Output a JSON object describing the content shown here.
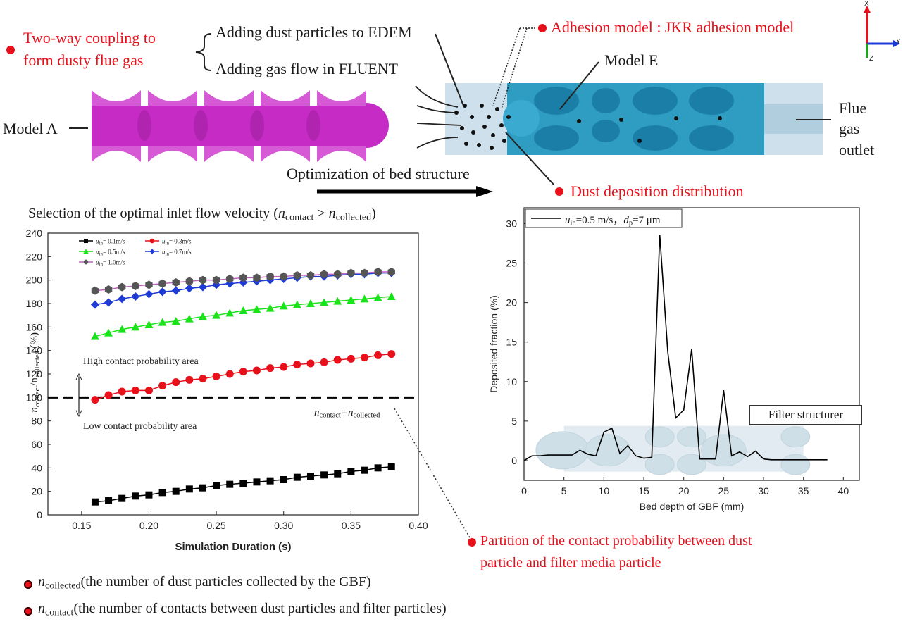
{
  "top": {
    "coupling_line1": "Two-way coupling to",
    "coupling_line2": "form dusty flue gas",
    "edem_text": "Adding dust particles to EDEM",
    "fluent_text": "Adding gas flow in FLUENT",
    "adhesion_text": "Adhesion model : JKR adhesion model",
    "model_e": "Model E",
    "model_a": "Model A",
    "flue_line1": "Flue",
    "flue_line2": "gas",
    "flue_line3": "outlet",
    "optimization": "Optimization of bed structure",
    "dust_deposition": "Dust deposition distribution",
    "axis_x": "X",
    "axis_y": "Y",
    "axis_z": "Z"
  },
  "left_title": {
    "prefix": "Selection of the optimal inlet flow velocity (",
    "n": "n",
    "contact": "contact",
    "gt": " > ",
    "collected": "collected",
    "suffix": ")"
  },
  "left_chart_labels": {
    "high_area": "High contact probability area",
    "low_area": "Low contact probability area",
    "eq_n1": "n",
    "eq_sub1": "contact",
    "eq_mid": "=n",
    "eq_sub2": "collected",
    "ylabel_n1": "n",
    "ylabel_sub1": "contact",
    "ylabel_slash": "/n",
    "ylabel_sub2": "collected",
    "ylabel_unit": " (%)",
    "legend_u": "u",
    "legend_in": "in"
  },
  "right_chart_labels": {
    "legend_u": "u",
    "legend_in": "in",
    "legend_rest": "=0.5 m/s，",
    "legend_d": "d",
    "legend_p": "p",
    "legend_rest2": "=7 μm",
    "filter_box": "Filter structurer"
  },
  "partition": {
    "line1": "Partition of the contact probability between dust",
    "line2": "particle and filter media particle"
  },
  "notes": {
    "n": "n",
    "collected_sub": "collected",
    "collected_desc": "(the number of dust particles collected by the GBF)",
    "contact_sub": "contact",
    "contact_desc": "(the number of contacts between dust particles and filter particles)"
  },
  "colors": {
    "accent_red": "#e8101b",
    "magenta": "#c62bc6",
    "blue_model": "#3aa6c8",
    "glass": "#bcd6e4"
  },
  "chart_data": [
    {
      "type": "line",
      "xlabel": "Simulation Duration (s)",
      "ylabel": "ncontact/ncollected (%)",
      "xlim": [
        0.125,
        0.4
      ],
      "ylim": [
        0,
        240
      ],
      "xticks": [
        0.15,
        0.2,
        0.25,
        0.3,
        0.35,
        0.4
      ],
      "xtick_labels": [
        "0.15",
        "0.20",
        "0.25",
        "0.30",
        "0.35",
        "0.40"
      ],
      "yticks": [
        0,
        20,
        40,
        60,
        80,
        100,
        120,
        140,
        160,
        180,
        200,
        220,
        240
      ],
      "grid": false,
      "legend_position": "top-left",
      "reference_line": 100,
      "series": [
        {
          "name": "= 0.1m/s",
          "marker": "square",
          "color": "#000000",
          "x": [
            0.16,
            0.17,
            0.18,
            0.19,
            0.2,
            0.21,
            0.22,
            0.23,
            0.24,
            0.25,
            0.26,
            0.27,
            0.28,
            0.29,
            0.3,
            0.31,
            0.32,
            0.33,
            0.34,
            0.35,
            0.36,
            0.37,
            0.38
          ],
          "y": [
            11,
            12,
            14,
            16,
            17,
            19,
            20,
            22,
            23,
            25,
            26,
            27,
            28,
            29,
            30,
            32,
            33,
            34,
            35,
            37,
            38,
            40,
            41
          ]
        },
        {
          "name": "= 0.3m/s",
          "marker": "circle",
          "color": "#e8101b",
          "x": [
            0.16,
            0.17,
            0.18,
            0.19,
            0.2,
            0.21,
            0.22,
            0.23,
            0.24,
            0.25,
            0.26,
            0.27,
            0.28,
            0.29,
            0.3,
            0.31,
            0.32,
            0.33,
            0.34,
            0.35,
            0.36,
            0.37,
            0.38
          ],
          "y": [
            98,
            102,
            105,
            106,
            106,
            110,
            113,
            115,
            116,
            118,
            120,
            122,
            123,
            125,
            126,
            128,
            129,
            130,
            132,
            133,
            134,
            136,
            137
          ]
        },
        {
          "name": "= 0.5m/s",
          "marker": "triangle",
          "color": "#19e419",
          "x": [
            0.16,
            0.17,
            0.18,
            0.19,
            0.2,
            0.21,
            0.22,
            0.23,
            0.24,
            0.25,
            0.26,
            0.27,
            0.28,
            0.29,
            0.3,
            0.31,
            0.32,
            0.33,
            0.34,
            0.35,
            0.36,
            0.37,
            0.38
          ],
          "y": [
            152,
            155,
            158,
            160,
            162,
            164,
            165,
            167,
            169,
            170,
            172,
            174,
            175,
            176,
            178,
            179,
            180,
            181,
            182,
            183,
            184,
            185,
            186
          ]
        },
        {
          "name": "= 0.7m/s",
          "marker": "diamond",
          "color": "#1f3bd6",
          "x": [
            0.16,
            0.17,
            0.18,
            0.19,
            0.2,
            0.21,
            0.22,
            0.23,
            0.24,
            0.25,
            0.26,
            0.27,
            0.28,
            0.29,
            0.3,
            0.31,
            0.32,
            0.33,
            0.34,
            0.35,
            0.36,
            0.37,
            0.38
          ],
          "y": [
            179,
            181,
            184,
            186,
            188,
            190,
            191,
            193,
            194,
            196,
            197,
            198,
            199,
            200,
            201,
            202,
            203,
            203,
            204,
            205,
            205,
            206,
            206
          ]
        },
        {
          "name": "= 1.0m/s",
          "marker": "hexagon",
          "color": "#555555",
          "line_color": "#c060c0",
          "x": [
            0.16,
            0.17,
            0.18,
            0.19,
            0.2,
            0.21,
            0.22,
            0.23,
            0.24,
            0.25,
            0.26,
            0.27,
            0.28,
            0.29,
            0.3,
            0.31,
            0.32,
            0.33,
            0.34,
            0.35,
            0.36,
            0.37,
            0.38
          ],
          "y": [
            191,
            192,
            194,
            195,
            196,
            197,
            198,
            199,
            200,
            200,
            201,
            202,
            202,
            203,
            203,
            204,
            204,
            205,
            205,
            206,
            206,
            207,
            207
          ]
        }
      ]
    },
    {
      "type": "line",
      "xlabel": "Bed depth of GBF (mm)",
      "ylabel": "Deposited fraction (%)",
      "xlim": [
        0,
        42
      ],
      "ylim": [
        -2.5,
        32
      ],
      "xticks": [
        0,
        5,
        10,
        15,
        20,
        25,
        30,
        35,
        40
      ],
      "yticks": [
        0,
        5,
        10,
        15,
        20,
        25,
        30
      ],
      "grid": false,
      "legend_position": "top-left",
      "series": [
        {
          "name": "uin=0.5 m/s, dp=7 μm",
          "color": "#000000",
          "x": [
            0,
            1,
            2,
            3,
            4,
            5,
            6,
            7,
            8,
            9,
            10,
            11,
            12,
            13,
            14,
            15,
            16,
            17,
            18,
            19,
            20,
            21,
            22,
            23,
            24,
            25,
            26,
            27,
            28,
            29,
            30,
            31,
            32,
            33,
            34,
            35,
            36,
            37,
            38
          ],
          "y": [
            0,
            0.6,
            0.6,
            0.7,
            0.7,
            0.7,
            0.7,
            1.3,
            0.8,
            0.6,
            3.6,
            4.1,
            0.9,
            1.9,
            0.6,
            0.3,
            0.4,
            28.6,
            13.8,
            5.4,
            6.4,
            14.1,
            0.2,
            0.2,
            0.2,
            8.9,
            0.6,
            1.1,
            0.5,
            1.2,
            0.2,
            0.1,
            0.1,
            0.1,
            0.1,
            0.1,
            0.1,
            0.1,
            0.1
          ]
        }
      ]
    }
  ]
}
